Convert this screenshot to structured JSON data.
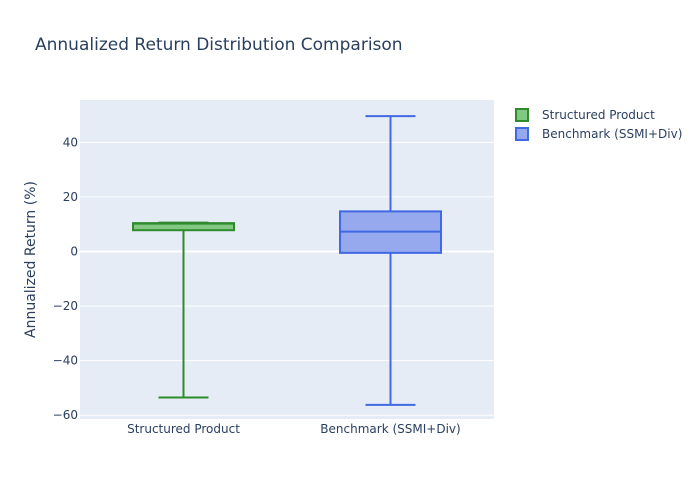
{
  "chart_data": {
    "type": "box",
    "title": "Annualized Return Distribution Comparison",
    "xlabel": "",
    "ylabel": "Annualized Return (%)",
    "ylim": [
      -62,
      56
    ],
    "yticks": [
      -60,
      -40,
      -20,
      0,
      20,
      40
    ],
    "ytick_labels": [
      "−60",
      "−40",
      "−20",
      "0",
      "20",
      "40"
    ],
    "categories": [
      "Structured Product",
      "Benchmark (SSMI+Div)"
    ],
    "series": [
      {
        "name": "Structured Product",
        "min": -53.5,
        "q1": 7.8,
        "median": 10.2,
        "q3": 10.4,
        "max": 10.6,
        "line_color": "#2e8b2e",
        "fill_color": "#82c782"
      },
      {
        "name": "Benchmark (SSMI+Div)",
        "min": -56.2,
        "q1": -0.5,
        "median": 7.3,
        "q3": 14.7,
        "max": 49.6,
        "line_color": "#4169e1",
        "fill_color": "#97a9ee"
      }
    ],
    "grid": true,
    "legend_position": "top-right"
  }
}
